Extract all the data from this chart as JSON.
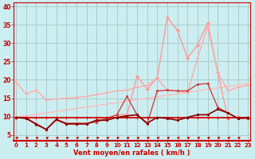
{
  "bg_color": "#cceef0",
  "grid_color": "#aacccc",
  "xlabel": "Vent moyen/en rafales ( km/h )",
  "x_ticks": [
    0,
    1,
    2,
    3,
    4,
    5,
    6,
    7,
    8,
    9,
    10,
    11,
    12,
    13,
    14,
    15,
    16,
    17,
    18,
    19,
    20,
    21,
    22,
    23
  ],
  "ylim": [
    3.5,
    41
  ],
  "xlim": [
    -0.2,
    23.2
  ],
  "yticks": [
    5,
    10,
    15,
    20,
    25,
    30,
    35,
    40
  ],
  "lines": [
    {
      "x": [
        0,
        23
      ],
      "y": [
        9.8,
        19.0
      ],
      "color": "#ffbbbb",
      "lw": 1.0,
      "marker": null
    },
    {
      "x": [
        0,
        23
      ],
      "y": [
        9.8,
        9.8
      ],
      "color": "#ffbbbb",
      "lw": 1.0,
      "marker": null
    },
    {
      "x": [
        0,
        1,
        2,
        3,
        4,
        5,
        6,
        7,
        8,
        9,
        10,
        11,
        12,
        13,
        14,
        15,
        16,
        17,
        18,
        19,
        20,
        21,
        22,
        23
      ],
      "y": [
        9.8,
        9.8,
        8.0,
        6.5,
        9.0,
        8.0,
        8.0,
        8.0,
        9.0,
        9.5,
        10.5,
        10.5,
        21.0,
        17.5,
        20.5,
        37.0,
        33.5,
        26.0,
        29.5,
        35.5,
        22.0,
        9.5,
        10.0,
        9.5
      ],
      "color": "#ff9999",
      "lw": 1.0,
      "marker": "D",
      "ms": 2.0
    },
    {
      "x": [
        0,
        1,
        2,
        3,
        4,
        5,
        6,
        7,
        8,
        9,
        10,
        11,
        12,
        13,
        14,
        15,
        16,
        17,
        18,
        19,
        20,
        21,
        22,
        23
      ],
      "y": [
        19.5,
        16.2,
        17.2,
        14.5,
        14.8,
        15.0,
        15.2,
        15.5,
        16.0,
        16.5,
        17.0,
        17.2,
        18.0,
        18.5,
        20.5,
        17.0,
        17.0,
        16.5,
        26.0,
        34.5,
        22.0,
        17.0,
        18.0,
        18.5
      ],
      "color": "#ffaaaa",
      "lw": 1.0,
      "marker": "+",
      "ms": 3.0
    },
    {
      "x": [
        0,
        1,
        2,
        3,
        4,
        5,
        6,
        7,
        8,
        9,
        10,
        11,
        12,
        13,
        14,
        15,
        16,
        17,
        18,
        19,
        20,
        21,
        22,
        23
      ],
      "y": [
        9.8,
        9.8,
        7.8,
        6.5,
        9.2,
        8.2,
        8.2,
        8.2,
        8.5,
        9.5,
        10.5,
        15.5,
        10.5,
        8.0,
        17.0,
        17.2,
        17.0,
        17.0,
        18.8,
        19.0,
        12.5,
        11.0,
        9.5,
        9.5
      ],
      "color": "#cc4444",
      "lw": 1.0,
      "marker": "s",
      "ms": 2.0
    },
    {
      "x": [
        0,
        1,
        2,
        3,
        4,
        5,
        6,
        7,
        8,
        9,
        10,
        11,
        12,
        13,
        14,
        15,
        16,
        17,
        18,
        19,
        20,
        21,
        22,
        23
      ],
      "y": [
        9.8,
        9.8,
        9.8,
        9.8,
        9.8,
        9.8,
        9.8,
        9.8,
        9.8,
        9.8,
        9.8,
        9.8,
        9.8,
        9.8,
        9.8,
        9.8,
        9.8,
        9.8,
        9.8,
        9.8,
        9.8,
        9.8,
        9.8,
        9.8
      ],
      "color": "#cc0000",
      "lw": 1.2,
      "marker": "+",
      "ms": 3.0
    },
    {
      "x": [
        0,
        1,
        2,
        3,
        4,
        5,
        6,
        7,
        8,
        9,
        10,
        11,
        12,
        13,
        14,
        15,
        16,
        17,
        18,
        19,
        20,
        21,
        22,
        23
      ],
      "y": [
        9.8,
        9.5,
        8.0,
        6.5,
        9.2,
        8.0,
        8.0,
        8.0,
        9.0,
        9.0,
        9.8,
        10.2,
        10.5,
        8.2,
        9.8,
        9.5,
        9.0,
        9.8,
        10.5,
        10.5,
        12.0,
        11.0,
        9.5,
        9.8
      ],
      "color": "#880000",
      "lw": 1.2,
      "marker": "s",
      "ms": 2.0
    }
  ],
  "label_color": "#cc0000",
  "tick_color": "#cc0000",
  "axis_color": "#cc0000",
  "arrow_color": "#cc0000"
}
